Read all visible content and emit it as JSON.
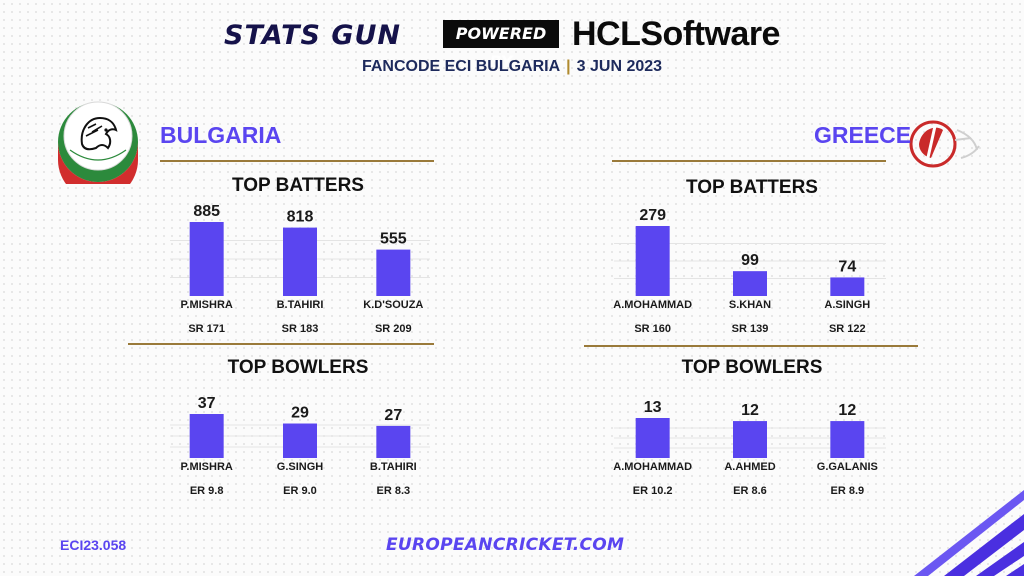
{
  "brand": {
    "stats_gun": "STATS GUN",
    "powered_by": "POWERED BY",
    "sponsor": "HCLSoftware"
  },
  "header": {
    "event": "FANCODE ECI  BULGARIA",
    "date": "3 JUN 2023"
  },
  "colors": {
    "bar": "#5a45f0",
    "accent": "#5a45f0",
    "gold_line": "#9a7a3a"
  },
  "teams": {
    "left": {
      "name": "BULGARIA",
      "logo_icon": "bulgarian-cricket-federation-logo"
    },
    "right": {
      "name": "GREECE",
      "logo_icon": "greece-cricket-logo"
    }
  },
  "sections": {
    "batters": "TOP BATTERS",
    "bowlers": "TOP BOWLERS"
  },
  "footer": {
    "code": "ECI23.058",
    "site": "EUROPEANCRICKET.COM"
  },
  "chart_data": [
    {
      "type": "bar",
      "title": "TOP BATTERS",
      "team": "BULGARIA",
      "categories": [
        "P.MISHRA",
        "B.TAHIRI",
        "K.D'SOUZA"
      ],
      "values": [
        885,
        818,
        555
      ],
      "sublabels": [
        "SR 171",
        "SR 183",
        "SR 209"
      ],
      "ylim": [
        0,
        885
      ]
    },
    {
      "type": "bar",
      "title": "TOP BATTERS",
      "team": "GREECE",
      "categories": [
        "A.MOHAMMAD",
        "S.KHAN",
        "A.SINGH"
      ],
      "values": [
        279,
        99,
        74
      ],
      "sublabels": [
        "SR 160",
        "SR 139",
        "SR 122"
      ],
      "ylim": [
        0,
        279
      ]
    },
    {
      "type": "bar",
      "title": "TOP BOWLERS",
      "team": "BULGARIA",
      "categories": [
        "P.MISHRA",
        "G.SINGH",
        "B.TAHIRI"
      ],
      "values": [
        37,
        29,
        27
      ],
      "sublabels": [
        "ER 9.8",
        "ER 9.0",
        "ER 8.3"
      ],
      "ylim": [
        0,
        37
      ]
    },
    {
      "type": "bar",
      "title": "TOP BOWLERS",
      "team": "GREECE",
      "categories": [
        "A.MOHAMMAD",
        "A.AHMED",
        "G.GALANIS"
      ],
      "values": [
        13,
        12,
        12
      ],
      "sublabels": [
        "ER 10.2",
        "ER 8.6",
        "ER 8.9"
      ],
      "ylim": [
        0,
        13
      ]
    }
  ]
}
